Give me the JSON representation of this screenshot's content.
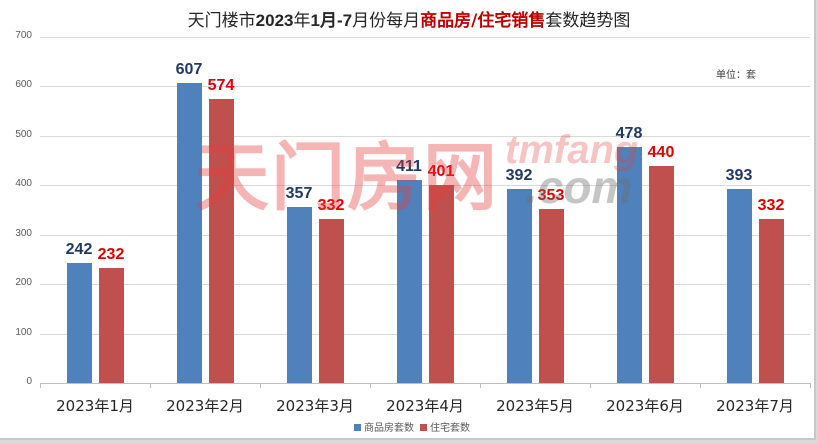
{
  "title": {
    "part1": "天门楼市",
    "part2": "2023",
    "part3": "年",
    "part4": "1",
    "part5": "月-",
    "part6": "7",
    "part7": "月份每月",
    "highlight": "商品房/住宅销售",
    "part8": "套数趋势图"
  },
  "unit_label": "单位：套",
  "watermark": {
    "cn": "天门房网",
    "en": "tmfang",
    "com": ".com"
  },
  "y_ticks": [
    "700",
    "600",
    "500",
    "400",
    "300",
    "200",
    "100",
    "0"
  ],
  "legend": [
    {
      "label": "商品房套数",
      "color": "#4f81bd"
    },
    {
      "label": "住宅套数",
      "color": "#c0504d"
    }
  ],
  "colors": {
    "series1": "#4f81bd",
    "series2": "#c0504d",
    "label1": "#1f3864",
    "label2": "#e00000",
    "title_highlight": "#c00000"
  },
  "chart_data": {
    "type": "bar",
    "title": "天门楼市2023年1月-7月份每月商品房/住宅销售套数趋势图",
    "xlabel": "",
    "ylabel": "",
    "unit": "单位：套",
    "ylim": [
      0,
      700
    ],
    "yticks": [
      0,
      100,
      200,
      300,
      400,
      500,
      600,
      700
    ],
    "grid": true,
    "legend_position": "bottom",
    "categories": [
      "2023年1月",
      "2023年2月",
      "2023年3月",
      "2023年4月",
      "2023年5月",
      "2023年6月",
      "2023年7月"
    ],
    "series": [
      {
        "name": "商品房套数",
        "values": [
          242,
          607,
          357,
          411,
          392,
          478,
          393
        ]
      },
      {
        "name": "住宅套数",
        "values": [
          232,
          574,
          332,
          401,
          353,
          440,
          332
        ]
      }
    ]
  }
}
